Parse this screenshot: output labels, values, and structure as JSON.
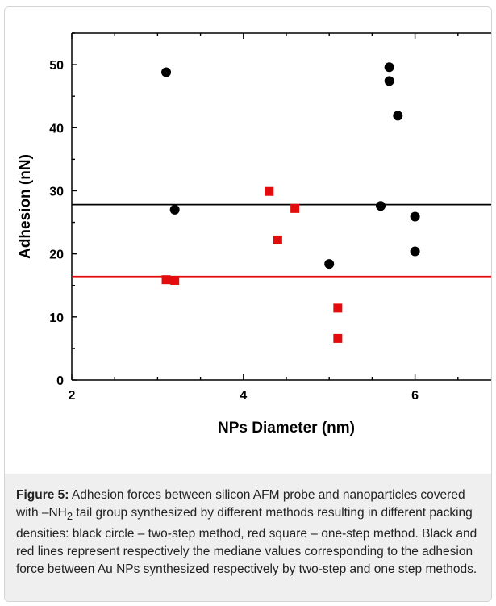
{
  "chart_data": {
    "type": "scatter",
    "xlabel": "NPs Diameter (nm)",
    "ylabel": "Adhesion (nN)",
    "xlim": [
      2,
      7
    ],
    "ylim": [
      0,
      55
    ],
    "xticks": [
      2,
      4,
      6
    ],
    "yticks": [
      0,
      10,
      20,
      30,
      40,
      50
    ],
    "grid": false,
    "series": [
      {
        "marker": "circle",
        "color": "#000000",
        "points": [
          [
            3.1,
            48.8
          ],
          [
            3.2,
            27.0
          ],
          [
            5.0,
            18.4
          ],
          [
            5.6,
            27.6
          ],
          [
            5.7,
            49.6
          ],
          [
            5.7,
            47.4
          ],
          [
            5.8,
            41.9
          ],
          [
            6.0,
            25.9
          ],
          [
            6.0,
            20.4
          ]
        ]
      },
      {
        "marker": "square",
        "color": "#e30b0b",
        "points": [
          [
            3.1,
            15.9
          ],
          [
            3.2,
            15.8
          ],
          [
            4.3,
            29.9
          ],
          [
            4.4,
            22.2
          ],
          [
            4.6,
            27.2
          ],
          [
            5.1,
            11.4
          ],
          [
            5.1,
            6.6
          ]
        ]
      }
    ],
    "reference_lines": [
      {
        "y": 27.8,
        "color": "#000000"
      },
      {
        "y": 16.4,
        "color": "#e30b0b"
      }
    ]
  },
  "caption": {
    "label": "Figure 5:",
    "text_before_sub": " Adhesion forces between silicon AFM probe and nanoparticles covered with –NH",
    "subscript": "2",
    "text_after_sub": " tail group synthesized by different methods resulting in different packing densities: black circle – two-step method, red square – one-step method. Black and red lines represent respectively the mediane values corresponding to the adhesion force between Au NPs synthesized respectively by two-step and one step methods."
  }
}
